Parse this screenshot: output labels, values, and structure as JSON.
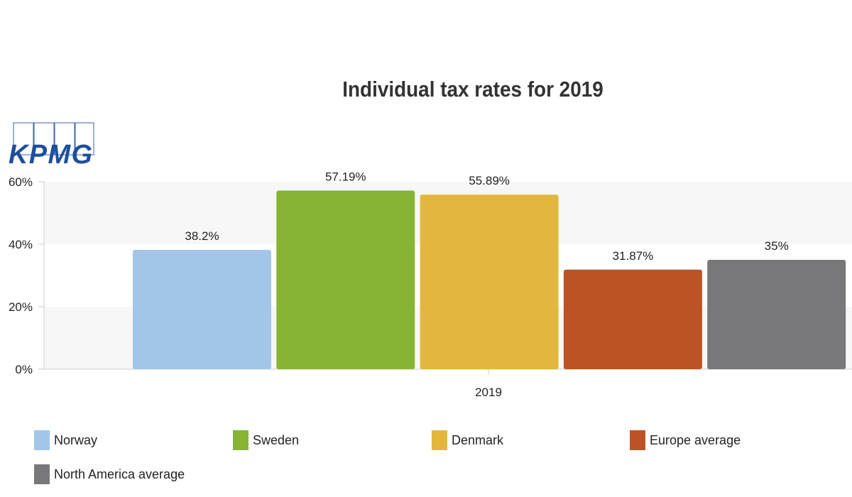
{
  "logo_text": "KPMG",
  "chart_data": {
    "type": "bar",
    "title": "Individual tax rates for 2019",
    "categories": [
      "2019"
    ],
    "series": [
      {
        "name": "Norway",
        "values": [
          38.2
        ],
        "label": "38.2%",
        "color": "#a3c6e8"
      },
      {
        "name": "Sweden",
        "values": [
          57.19
        ],
        "label": "57.19%",
        "color": "#86b534"
      },
      {
        "name": "Denmark",
        "values": [
          55.89
        ],
        "label": "55.89%",
        "color": "#e3b73d"
      },
      {
        "name": "Europe average",
        "values": [
          31.87
        ],
        "label": "31.87%",
        "color": "#bb5324"
      },
      {
        "name": "North America average",
        "values": [
          35
        ],
        "label": "35%",
        "color": "#78787a"
      }
    ],
    "ylim": [
      0,
      60
    ],
    "yticks": [
      "0%",
      "20%",
      "40%",
      "60%"
    ],
    "xlabel": "",
    "ylabel": "",
    "legend": "bottom"
  }
}
